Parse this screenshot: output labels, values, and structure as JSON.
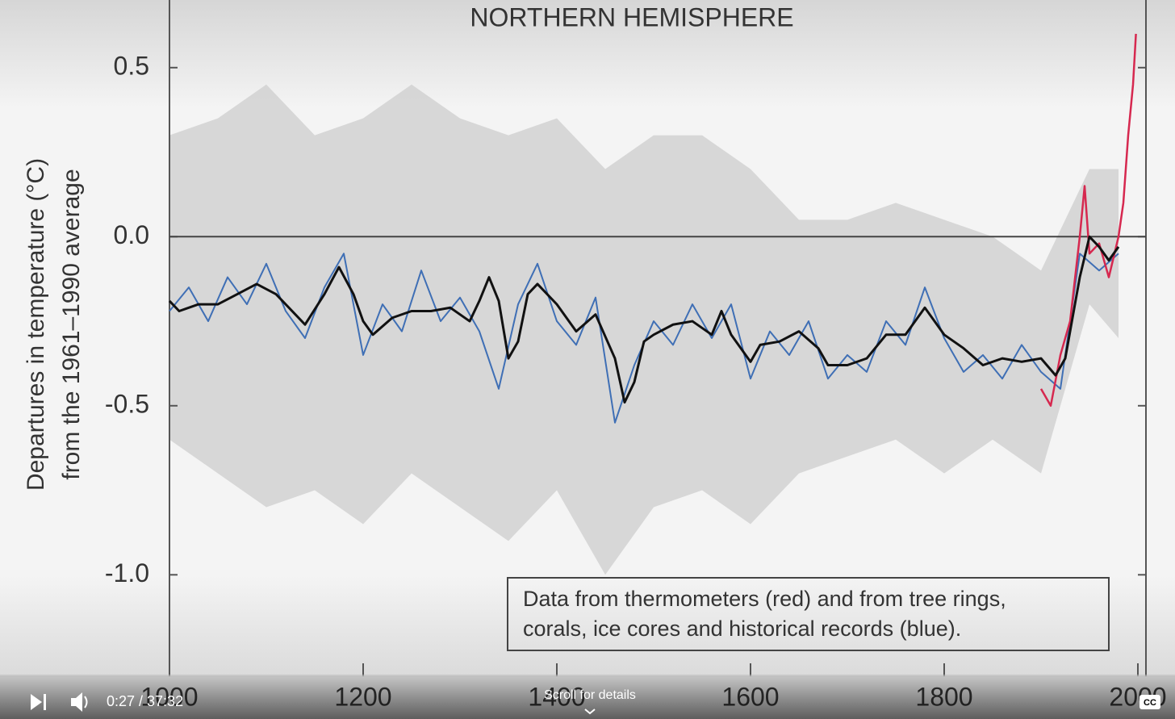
{
  "chart_data": {
    "type": "line",
    "title": "NORTHERN HEMISPHERE",
    "y_label": [
      "Departures in temperature (°C)",
      "from the 1961–1990 average"
    ],
    "annotation": [
      "Data from thermometers (red) and from tree rings,",
      "corals, ice cores and historical records (blue)."
    ],
    "xlim": [
      1000,
      2000
    ],
    "xticks": [
      1000,
      1200,
      1400,
      1600,
      1800,
      2000
    ],
    "ylim": [
      -1.3,
      0.7
    ],
    "yticks": [
      0.5,
      {
        "value": 0,
        "label": "0.0"
      },
      -0.5,
      {
        "value": -1,
        "label": "-1.0"
      }
    ],
    "zero_line": true,
    "band": {
      "color": "#cfcfcf",
      "x": [
        1000,
        1050,
        1100,
        1150,
        1200,
        1250,
        1300,
        1350,
        1400,
        1450,
        1500,
        1550,
        1600,
        1650,
        1700,
        1750,
        1800,
        1850,
        1900,
        1950,
        1980
      ],
      "upper": [
        0.3,
        0.35,
        0.45,
        0.3,
        0.35,
        0.45,
        0.35,
        0.3,
        0.35,
        0.2,
        0.3,
        0.3,
        0.2,
        0.05,
        0.05,
        0.1,
        0.05,
        0.0,
        -0.1,
        0.2,
        0.2
      ],
      "lower": [
        -0.6,
        -0.7,
        -0.8,
        -0.75,
        -0.85,
        -0.7,
        -0.8,
        -0.9,
        -0.75,
        -1.0,
        -0.8,
        -0.75,
        -0.85,
        -0.7,
        -0.65,
        -0.6,
        -0.7,
        -0.6,
        -0.7,
        -0.2,
        -0.3
      ]
    },
    "series": [
      {
        "color": "#3f6fb5",
        "width": 2,
        "x": [
          1000,
          1020,
          1040,
          1060,
          1080,
          1100,
          1120,
          1140,
          1160,
          1180,
          1200,
          1220,
          1240,
          1260,
          1280,
          1300,
          1320,
          1340,
          1360,
          1380,
          1400,
          1420,
          1440,
          1460,
          1480,
          1500,
          1520,
          1540,
          1560,
          1580,
          1600,
          1620,
          1640,
          1660,
          1680,
          1700,
          1720,
          1740,
          1760,
          1780,
          1800,
          1820,
          1840,
          1860,
          1880,
          1900,
          1920,
          1940,
          1960,
          1980
        ],
        "values": [
          -0.22,
          -0.15,
          -0.25,
          -0.12,
          -0.2,
          -0.08,
          -0.22,
          -0.3,
          -0.15,
          -0.05,
          -0.35,
          -0.2,
          -0.28,
          -0.1,
          -0.25,
          -0.18,
          -0.28,
          -0.45,
          -0.2,
          -0.08,
          -0.25,
          -0.32,
          -0.18,
          -0.55,
          -0.38,
          -0.25,
          -0.32,
          -0.2,
          -0.3,
          -0.2,
          -0.42,
          -0.28,
          -0.35,
          -0.25,
          -0.42,
          -0.35,
          -0.4,
          -0.25,
          -0.32,
          -0.15,
          -0.3,
          -0.4,
          -0.35,
          -0.42,
          -0.32,
          -0.4,
          -0.45,
          -0.05,
          -0.1,
          -0.05
        ]
      },
      {
        "color": "#d6284f",
        "width": 2.5,
        "x": [
          1900,
          1910,
          1920,
          1930,
          1940,
          1945,
          1950,
          1960,
          1970,
          1980,
          1985,
          1990,
          1995,
          1998
        ],
        "values": [
          -0.45,
          -0.5,
          -0.35,
          -0.25,
          0.0,
          0.15,
          -0.05,
          -0.02,
          -0.12,
          0.0,
          0.1,
          0.3,
          0.45,
          0.6
        ]
      },
      {
        "color": "#111111",
        "width": 3,
        "x": [
          1000,
          1010,
          1030,
          1050,
          1070,
          1090,
          1110,
          1130,
          1140,
          1160,
          1175,
          1190,
          1200,
          1210,
          1230,
          1250,
          1270,
          1290,
          1310,
          1320,
          1330,
          1340,
          1350,
          1360,
          1370,
          1380,
          1400,
          1420,
          1440,
          1460,
          1470,
          1480,
          1490,
          1500,
          1520,
          1540,
          1560,
          1570,
          1580,
          1600,
          1610,
          1630,
          1650,
          1670,
          1680,
          1700,
          1720,
          1740,
          1760,
          1780,
          1800,
          1820,
          1840,
          1860,
          1880,
          1900,
          1915,
          1925,
          1940,
          1950,
          1960,
          1970,
          1980
        ],
        "values": [
          -0.19,
          -0.22,
          -0.2,
          -0.2,
          -0.17,
          -0.14,
          -0.17,
          -0.23,
          -0.26,
          -0.17,
          -0.09,
          -0.17,
          -0.25,
          -0.29,
          -0.24,
          -0.22,
          -0.22,
          -0.21,
          -0.25,
          -0.19,
          -0.12,
          -0.19,
          -0.36,
          -0.31,
          -0.17,
          -0.14,
          -0.2,
          -0.28,
          -0.23,
          -0.36,
          -0.49,
          -0.43,
          -0.31,
          -0.29,
          -0.26,
          -0.25,
          -0.29,
          -0.22,
          -0.29,
          -0.37,
          -0.32,
          -0.31,
          -0.28,
          -0.33,
          -0.38,
          -0.38,
          -0.36,
          -0.29,
          -0.29,
          -0.21,
          -0.29,
          -0.33,
          -0.38,
          -0.36,
          -0.37,
          -0.36,
          -0.41,
          -0.36,
          -0.12,
          0.0,
          -0.03,
          -0.07,
          -0.03
        ]
      }
    ]
  },
  "player": {
    "time": "0:27 / 37:32",
    "scroll_hint": "Scroll for details",
    "cc": "CC"
  }
}
